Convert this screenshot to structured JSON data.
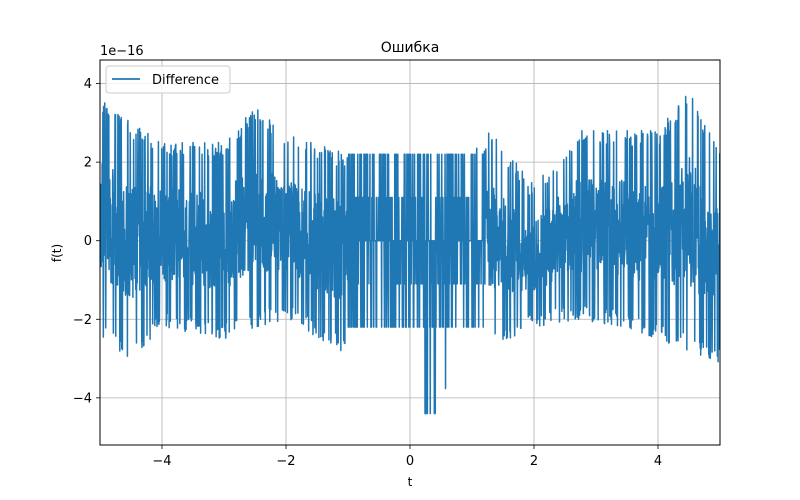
{
  "chart_data": {
    "type": "line",
    "title": "Ошибка",
    "xlabel": "t",
    "ylabel": "f(t)",
    "offset_text": "1e−16",
    "xlim": [
      -5,
      5
    ],
    "ylim": [
      -5.2,
      4.6
    ],
    "y_multiplier": 1e-16,
    "grid": true,
    "legend_position": "upper left",
    "x_ticks": [
      -4,
      -2,
      0,
      2,
      4
    ],
    "y_ticks": [
      -4,
      -2,
      0,
      2,
      4
    ],
    "x_tick_labels": [
      "−4",
      "−2",
      "0",
      "2",
      "4"
    ],
    "y_tick_labels": [
      "−4",
      "−2",
      "0",
      "2",
      "4"
    ],
    "series": [
      {
        "name": "Difference",
        "color": "#1f77b4",
        "description_envelope": [
          {
            "x": -5.0,
            "ymin": -2.5,
            "ymax": 3.6
          },
          {
            "x": -4.5,
            "ymin": -3.0,
            "ymax": 3.0
          },
          {
            "x": -4.0,
            "ymin": -2.2,
            "ymax": 2.5
          },
          {
            "x": -3.0,
            "ymin": -2.5,
            "ymax": 2.5
          },
          {
            "x": -2.5,
            "ymin": -2.2,
            "ymax": 3.4
          },
          {
            "x": -2.0,
            "ymin": -2.0,
            "ymax": 2.7
          },
          {
            "x": -1.0,
            "ymin": -2.9,
            "ymax": 2.2
          },
          {
            "x": -0.5,
            "ymin": -2.2,
            "ymax": 2.2
          },
          {
            "x": 0.0,
            "ymin": -2.2,
            "ymax": 2.2
          },
          {
            "x": 0.25,
            "ymin": -4.4,
            "ymax": 2.2
          },
          {
            "x": 0.4,
            "ymin": -4.4,
            "ymax": 2.2
          },
          {
            "x": 1.0,
            "ymin": -2.2,
            "ymax": 2.2
          },
          {
            "x": 1.3,
            "ymin": -2.7,
            "ymax": 2.8
          },
          {
            "x": 2.0,
            "ymin": -2.2,
            "ymax": 1.4
          },
          {
            "x": 2.7,
            "ymin": -2.0,
            "ymax": 2.8
          },
          {
            "x": 3.5,
            "ymin": -2.2,
            "ymax": 2.8
          },
          {
            "x": 4.0,
            "ymin": -2.5,
            "ymax": 2.8
          },
          {
            "x": 4.5,
            "ymin": -2.8,
            "ymax": 3.8
          },
          {
            "x": 5.0,
            "ymin": -3.1,
            "ymax": 2.2
          }
        ]
      }
    ]
  }
}
